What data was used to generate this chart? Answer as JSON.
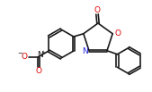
{
  "bg_color": "#ffffff",
  "line_color": "#1a1a1a",
  "bond_width": 1.2,
  "figsize": [
    1.69,
    1.03
  ],
  "dpi": 100,
  "atom_labels": {
    "O_carbonyl": {
      "text": "O",
      "color": "#e00000",
      "fontsize": 6.5
    },
    "O_ring": {
      "text": "O",
      "color": "#e00000",
      "fontsize": 6.5
    },
    "N_ring": {
      "text": "N",
      "color": "#2020e0",
      "fontsize": 6.5
    },
    "NO2_N": {
      "text": "N",
      "color": "#1a1a1a",
      "fontsize": 6.5
    },
    "NO2_Nplus": {
      "text": "+",
      "color": "#1a1a1a",
      "fontsize": 4.5
    },
    "NO2_O1": {
      "text": "O",
      "color": "#e00000",
      "fontsize": 6.5
    },
    "NO2_O1m": {
      "text": "−",
      "color": "#1a1a1a",
      "fontsize": 5.0
    },
    "NO2_O2": {
      "text": "O",
      "color": "#e00000",
      "fontsize": 6.5
    }
  }
}
